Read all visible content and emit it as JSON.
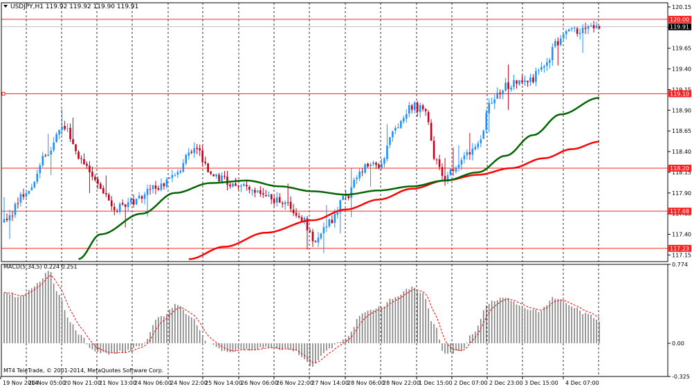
{
  "header": {
    "symbol_line": "USDJPY,H1  119.92 119.92 119.90 119.91"
  },
  "macd_header": {
    "text": "MACD(5,34,5) 0.224 0.251"
  },
  "copyright": "MT4 TeleTrade, © 2001-2014, MetaQuotes Software Corp.",
  "colors": {
    "bull_candle": "#1e90ff",
    "bear_candle": "#c0001c",
    "ma_slow": "#ff0000",
    "ma_fast": "#006400",
    "level_line": "#ff2020",
    "macd_hist": "#808080",
    "macd_signal": "#ff0000"
  },
  "chart_data": [
    {
      "type": "candlestick",
      "symbol": "USDJPY",
      "timeframe": "H1",
      "last_price": 119.91,
      "ylim": [
        117.07,
        120.2
      ],
      "y_ticks": [
        "120.15",
        "119.90",
        "119.65",
        "119.40",
        "119.15",
        "118.90",
        "118.65",
        "118.40",
        "118.15",
        "117.90",
        "117.65",
        "117.40",
        "117.15"
      ],
      "x_ticks": [
        "19 Nov 2014",
        "20 Nov 05:00",
        "20 Nov 21:00",
        "21 Nov 13:00",
        "24 Nov 06:00",
        "24 Nov 22:00",
        "25 Nov 14:00",
        "26 Nov 06:00",
        "26 Nov 22:00",
        "27 Nov 14:00",
        "28 Nov 06:00",
        "28 Nov 22:00",
        "1 Dec 15:00",
        "2 Dec 07:00",
        "2 Dec 23:00",
        "3 Dec 15:00",
        "4 Dec 07:00"
      ],
      "horizontal_levels": [
        {
          "label": "120.00",
          "value": 120.0
        },
        {
          "label": "119.10",
          "value": 119.1
        },
        {
          "label": "118.20",
          "value": 118.2
        },
        {
          "label": "117.68",
          "value": 117.68
        },
        {
          "label": "117.23",
          "value": 117.23
        }
      ],
      "price_label": "119.91",
      "anchors": [
        {
          "bar": 0,
          "price": 117.55
        },
        {
          "bar": 8,
          "price": 117.9
        },
        {
          "bar": 15,
          "price": 118.35
        },
        {
          "bar": 22,
          "price": 118.7
        },
        {
          "bar": 27,
          "price": 118.35
        },
        {
          "bar": 34,
          "price": 118.0
        },
        {
          "bar": 40,
          "price": 117.7
        },
        {
          "bar": 46,
          "price": 117.8
        },
        {
          "bar": 54,
          "price": 117.95
        },
        {
          "bar": 62,
          "price": 118.1
        },
        {
          "bar": 69,
          "price": 118.45
        },
        {
          "bar": 76,
          "price": 118.1
        },
        {
          "bar": 84,
          "price": 118.0
        },
        {
          "bar": 92,
          "price": 117.92
        },
        {
          "bar": 100,
          "price": 117.8
        },
        {
          "bar": 108,
          "price": 117.6
        },
        {
          "bar": 113,
          "price": 117.3
        },
        {
          "bar": 118,
          "price": 117.55
        },
        {
          "bar": 124,
          "price": 117.85
        },
        {
          "bar": 130,
          "price": 118.2
        },
        {
          "bar": 136,
          "price": 118.25
        },
        {
          "bar": 142,
          "price": 118.7
        },
        {
          "bar": 148,
          "price": 118.95
        },
        {
          "bar": 153,
          "price": 118.9
        },
        {
          "bar": 156,
          "price": 118.35
        },
        {
          "bar": 160,
          "price": 118.1
        },
        {
          "bar": 166,
          "price": 118.3
        },
        {
          "bar": 172,
          "price": 118.5
        },
        {
          "bar": 177,
          "price": 119.0
        },
        {
          "bar": 182,
          "price": 119.2
        },
        {
          "bar": 190,
          "price": 119.25
        },
        {
          "bar": 196,
          "price": 119.4
        },
        {
          "bar": 200,
          "price": 119.7
        },
        {
          "bar": 206,
          "price": 119.85
        },
        {
          "bar": 212,
          "price": 119.92
        },
        {
          "bar": 216,
          "price": 119.91
        }
      ],
      "ma_fast_anchors": [
        {
          "bar": 27,
          "price": 117.1
        },
        {
          "bar": 35,
          "price": 117.4
        },
        {
          "bar": 50,
          "price": 117.65
        },
        {
          "bar": 62,
          "price": 117.9
        },
        {
          "bar": 75,
          "price": 118.02
        },
        {
          "bar": 88,
          "price": 118.05
        },
        {
          "bar": 100,
          "price": 117.98
        },
        {
          "bar": 112,
          "price": 117.92
        },
        {
          "bar": 124,
          "price": 117.88
        },
        {
          "bar": 136,
          "price": 117.93
        },
        {
          "bar": 148,
          "price": 117.98
        },
        {
          "bar": 160,
          "price": 118.05
        },
        {
          "bar": 172,
          "price": 118.15
        },
        {
          "bar": 182,
          "price": 118.35
        },
        {
          "bar": 192,
          "price": 118.6
        },
        {
          "bar": 202,
          "price": 118.85
        },
        {
          "bar": 216,
          "price": 119.05
        }
      ],
      "ma_slow_anchors": [
        {
          "bar": 67,
          "price": 117.1
        },
        {
          "bar": 80,
          "price": 117.25
        },
        {
          "bar": 95,
          "price": 117.42
        },
        {
          "bar": 112,
          "price": 117.57
        },
        {
          "bar": 124,
          "price": 117.7
        },
        {
          "bar": 136,
          "price": 117.82
        },
        {
          "bar": 148,
          "price": 117.95
        },
        {
          "bar": 160,
          "price": 118.05
        },
        {
          "bar": 172,
          "price": 118.12
        },
        {
          "bar": 184,
          "price": 118.2
        },
        {
          "bar": 196,
          "price": 118.32
        },
        {
          "bar": 206,
          "price": 118.43
        },
        {
          "bar": 216,
          "price": 118.52
        }
      ],
      "bars": 217
    },
    {
      "type": "bar",
      "name": "MACD(5,34,5)",
      "macd_value": 0.224,
      "signal_value": 0.251,
      "ylim": [
        -0.325,
        0.774
      ],
      "y_ticks": [
        "0.774",
        "0.00",
        "-0.325"
      ],
      "hist_anchors": [
        {
          "bar": 0,
          "v": 0.5
        },
        {
          "bar": 6,
          "v": 0.45
        },
        {
          "bar": 12,
          "v": 0.58
        },
        {
          "bar": 16,
          "v": 0.72
        },
        {
          "bar": 20,
          "v": 0.48
        },
        {
          "bar": 24,
          "v": 0.2
        },
        {
          "bar": 28,
          "v": 0.08
        },
        {
          "bar": 31,
          "v": -0.05
        },
        {
          "bar": 36,
          "v": -0.1
        },
        {
          "bar": 44,
          "v": -0.08
        },
        {
          "bar": 50,
          "v": -0.02
        },
        {
          "bar": 56,
          "v": 0.25
        },
        {
          "bar": 63,
          "v": 0.38
        },
        {
          "bar": 68,
          "v": 0.25
        },
        {
          "bar": 74,
          "v": 0.0
        },
        {
          "bar": 80,
          "v": -0.08
        },
        {
          "bar": 88,
          "v": -0.06
        },
        {
          "bar": 96,
          "v": -0.04
        },
        {
          "bar": 104,
          "v": -0.06
        },
        {
          "bar": 112,
          "v": -0.22
        },
        {
          "bar": 118,
          "v": -0.05
        },
        {
          "bar": 124,
          "v": 0.05
        },
        {
          "bar": 130,
          "v": 0.3
        },
        {
          "bar": 136,
          "v": 0.35
        },
        {
          "bar": 142,
          "v": 0.45
        },
        {
          "bar": 148,
          "v": 0.55
        },
        {
          "bar": 152,
          "v": 0.48
        },
        {
          "bar": 156,
          "v": 0.18
        },
        {
          "bar": 160,
          "v": -0.1
        },
        {
          "bar": 166,
          "v": -0.08
        },
        {
          "bar": 170,
          "v": 0.1
        },
        {
          "bar": 176,
          "v": 0.4
        },
        {
          "bar": 182,
          "v": 0.45
        },
        {
          "bar": 188,
          "v": 0.35
        },
        {
          "bar": 194,
          "v": 0.32
        },
        {
          "bar": 200,
          "v": 0.45
        },
        {
          "bar": 206,
          "v": 0.36
        },
        {
          "bar": 212,
          "v": 0.28
        },
        {
          "bar": 216,
          "v": 0.22
        }
      ]
    }
  ]
}
